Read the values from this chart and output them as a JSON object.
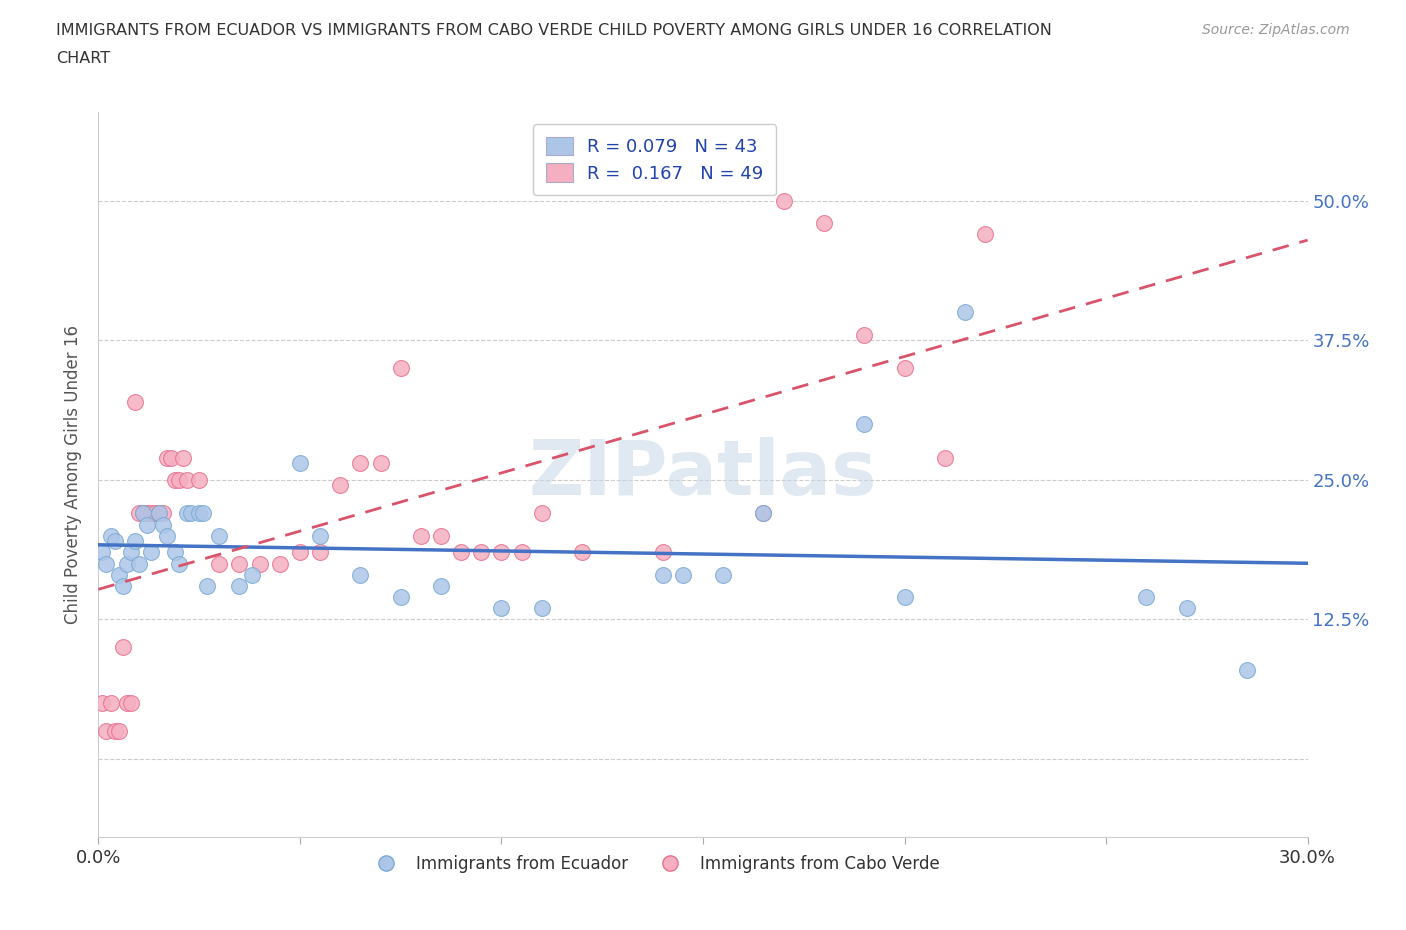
{
  "title_line1": "IMMIGRANTS FROM ECUADOR VS IMMIGRANTS FROM CABO VERDE CHILD POVERTY AMONG GIRLS UNDER 16 CORRELATION",
  "title_line2": "CHART",
  "source_text": "Source: ZipAtlas.com",
  "ylabel": "Child Poverty Among Girls Under 16",
  "xmin": 0.0,
  "xmax": 0.3,
  "ymin": -0.07,
  "ymax": 0.58,
  "yticks": [
    0.0,
    0.125,
    0.25,
    0.375,
    0.5
  ],
  "right_ytick_labels": [
    "",
    "12.5%",
    "25.0%",
    "37.5%",
    "50.0%"
  ],
  "ecuador_color": "#adc6e8",
  "caboverde_color": "#f5afc0",
  "ecuador_edge": "#7aaad4",
  "caboverde_edge": "#e87090",
  "ecuador_R": 0.079,
  "ecuador_N": 43,
  "caboverde_R": 0.167,
  "caboverde_N": 49,
  "trend_ecuador_color": "#4472c4",
  "trend_caboverde_color": "#d9536a",
  "legend_label_ecuador": "Immigrants from Ecuador",
  "legend_label_caboverde": "Immigrants from Cabo Verde",
  "background_color": "#ffffff",
  "grid_color": "#cccccc",
  "ecuador_x": [
    0.001,
    0.002,
    0.003,
    0.004,
    0.005,
    0.006,
    0.007,
    0.008,
    0.009,
    0.01,
    0.011,
    0.012,
    0.013,
    0.015,
    0.016,
    0.017,
    0.019,
    0.02,
    0.022,
    0.023,
    0.025,
    0.026,
    0.027,
    0.03,
    0.035,
    0.038,
    0.05,
    0.055,
    0.065,
    0.075,
    0.085,
    0.1,
    0.11,
    0.14,
    0.145,
    0.155,
    0.165,
    0.19,
    0.2,
    0.215,
    0.26,
    0.27,
    0.285
  ],
  "ecuador_y": [
    0.185,
    0.175,
    0.2,
    0.195,
    0.165,
    0.155,
    0.175,
    0.185,
    0.195,
    0.175,
    0.22,
    0.21,
    0.185,
    0.22,
    0.21,
    0.2,
    0.185,
    0.175,
    0.22,
    0.22,
    0.22,
    0.22,
    0.155,
    0.2,
    0.155,
    0.165,
    0.265,
    0.2,
    0.165,
    0.145,
    0.155,
    0.135,
    0.135,
    0.165,
    0.165,
    0.165,
    0.22,
    0.3,
    0.145,
    0.4,
    0.145,
    0.135,
    0.08
  ],
  "caboverde_x": [
    0.001,
    0.002,
    0.003,
    0.004,
    0.005,
    0.006,
    0.007,
    0.008,
    0.009,
    0.01,
    0.011,
    0.012,
    0.013,
    0.014,
    0.015,
    0.016,
    0.017,
    0.018,
    0.019,
    0.02,
    0.021,
    0.022,
    0.025,
    0.03,
    0.035,
    0.04,
    0.045,
    0.05,
    0.055,
    0.06,
    0.065,
    0.07,
    0.075,
    0.08,
    0.085,
    0.09,
    0.095,
    0.1,
    0.105,
    0.11,
    0.12,
    0.14,
    0.165,
    0.17,
    0.18,
    0.19,
    0.2,
    0.21,
    0.22
  ],
  "caboverde_y": [
    0.05,
    0.025,
    0.05,
    0.025,
    0.025,
    0.1,
    0.05,
    0.05,
    0.32,
    0.22,
    0.22,
    0.22,
    0.22,
    0.22,
    0.22,
    0.22,
    0.27,
    0.27,
    0.25,
    0.25,
    0.27,
    0.25,
    0.25,
    0.175,
    0.175,
    0.175,
    0.175,
    0.185,
    0.185,
    0.245,
    0.265,
    0.265,
    0.35,
    0.2,
    0.2,
    0.185,
    0.185,
    0.185,
    0.185,
    0.22,
    0.185,
    0.185,
    0.22,
    0.5,
    0.48,
    0.38,
    0.35,
    0.27,
    0.47
  ]
}
